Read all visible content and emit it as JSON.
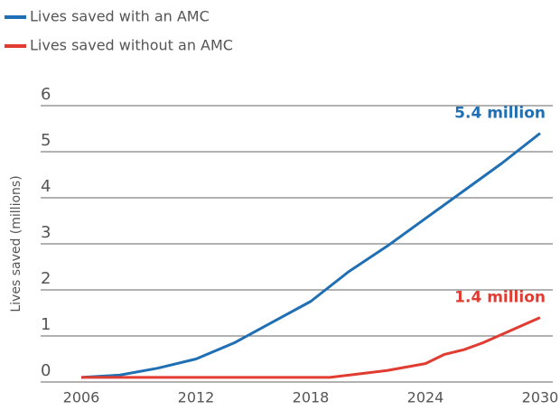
{
  "chart_data": {
    "type": "line",
    "y_label": "Lives saved (millions)",
    "xlim": [
      2006,
      2030
    ],
    "xticks": [
      2006,
      2012,
      2018,
      2024,
      2030
    ],
    "ylim": [
      0,
      6
    ],
    "yticks": [
      0,
      1,
      2,
      3,
      4,
      5,
      6
    ],
    "grid": true,
    "legend": "top-left",
    "series": [
      {
        "name": "Lives saved with an AMC",
        "color": "#1f6fb4",
        "x": [
          2006,
          2008,
          2010,
          2012,
          2014,
          2016,
          2018,
          2020,
          2022,
          2024,
          2026,
          2028,
          2030
        ],
        "values": [
          0.1,
          0.15,
          0.3,
          0.5,
          0.85,
          1.3,
          1.75,
          2.4,
          2.95,
          3.55,
          4.15,
          4.75,
          5.4
        ],
        "value_labels": [
          null,
          null,
          null,
          null,
          null,
          null,
          null,
          null,
          null,
          null,
          null,
          null,
          "5.4 million"
        ]
      },
      {
        "name": "Lives saved without an AMC",
        "color": "#e03c31",
        "x": [
          2006,
          2019,
          2020,
          2022,
          2024,
          2025,
          2026,
          2027,
          2030
        ],
        "values": [
          0.1,
          0.1,
          0.15,
          0.25,
          0.4,
          0.6,
          0.7,
          0.85,
          1.4
        ],
        "value_labels": [
          null,
          null,
          null,
          null,
          null,
          null,
          null,
          null,
          "1.4 million"
        ]
      }
    ]
  }
}
